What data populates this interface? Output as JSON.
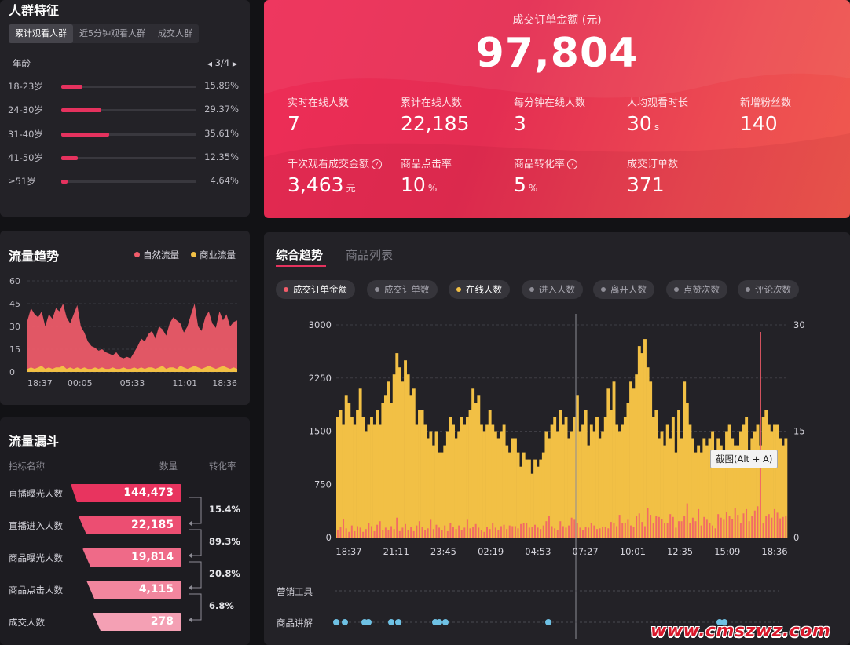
{
  "crowd": {
    "title": "人群特征",
    "tabs": [
      "累计观看人群",
      "近5分钟观看人群",
      "成交人群"
    ],
    "active_tab": 0,
    "section_label": "年龄",
    "pager": "3/4",
    "age_rows": [
      {
        "label": "18-23岁",
        "pct_text": "15.89%",
        "pct": 15.89
      },
      {
        "label": "24-30岁",
        "pct_text": "29.37%",
        "pct": 29.37
      },
      {
        "label": "31-40岁",
        "pct_text": "35.61%",
        "pct": 35.61
      },
      {
        "label": "41-50岁",
        "pct_text": "12.35%",
        "pct": 12.35
      },
      {
        "label": "≥51岁",
        "pct_text": "4.64%",
        "pct": 4.64
      }
    ]
  },
  "hero": {
    "title": "成交订单金额 (元)",
    "value": "97,804",
    "metrics": [
      {
        "label": "实时在线人数",
        "value": "7",
        "unit": "",
        "help": false
      },
      {
        "label": "累计在线人数",
        "value": "22,185",
        "unit": "",
        "help": false
      },
      {
        "label": "每分钟在线人数",
        "value": "3",
        "unit": "",
        "help": false
      },
      {
        "label": "人均观看时长",
        "value": "30",
        "unit": "s",
        "help": false
      },
      {
        "label": "新增粉丝数",
        "value": "140",
        "unit": "",
        "help": false
      },
      {
        "label": "千次观看成交金额",
        "value": "3,463",
        "unit": "元",
        "help": true
      },
      {
        "label": "商品点击率",
        "value": "10",
        "unit": "%",
        "help": false
      },
      {
        "label": "商品转化率",
        "value": "5",
        "unit": "%",
        "help": true
      },
      {
        "label": "成交订单数",
        "value": "371",
        "unit": "",
        "help": false
      }
    ]
  },
  "traffic": {
    "title": "流量趋势",
    "legend": [
      {
        "name": "自然流量",
        "color": "#f25c6a"
      },
      {
        "name": "商业流量",
        "color": "#f2c045"
      }
    ]
  },
  "funnel": {
    "title": "流量漏斗",
    "col_name": "指标名称",
    "col_count": "数量",
    "col_rate": "转化率",
    "rows": [
      {
        "label": "直播曝光人数",
        "value": "144,473",
        "color": "#e8345f"
      },
      {
        "label": "直播进入人数",
        "value": "22,185",
        "color": "#ec4e72"
      },
      {
        "label": "商品曝光人数",
        "value": "19,814",
        "color": "#ef6a88"
      },
      {
        "label": "商品点击人数",
        "value": "4,115",
        "color": "#f2869e"
      },
      {
        "label": "成交人数",
        "value": "278",
        "color": "#f4a0b4"
      }
    ],
    "rates": [
      "15.4%",
      "89.3%",
      "20.8%",
      "6.8%"
    ]
  },
  "trend": {
    "tabs": [
      "综合趋势",
      "商品列表"
    ],
    "active_tab": 0,
    "pills": [
      {
        "label": "成交订单金额",
        "color": "#f25c6a",
        "on": true
      },
      {
        "label": "成交订单数",
        "color": "#8e8d96",
        "on": false
      },
      {
        "label": "在线人数",
        "color": "#f2c045",
        "on": true
      },
      {
        "label": "进入人数",
        "color": "#8e8d96",
        "on": false
      },
      {
        "label": "离开人数",
        "color": "#8e8d96",
        "on": false
      },
      {
        "label": "点赞次数",
        "color": "#8e8d96",
        "on": false
      },
      {
        "label": "评论次数",
        "color": "#8e8d96",
        "on": false
      }
    ],
    "tooltip": "截图(Alt + A)",
    "lanes": [
      "营销工具",
      "商品讲解"
    ]
  },
  "watermark": "www.cmszwz.com",
  "chart_data": [
    {
      "type": "area",
      "x_tick_labels": [
        "18:37",
        "00:05",
        "05:33",
        "11:01",
        "18:36"
      ],
      "ylim": [
        0,
        60
      ],
      "y_ticks": [
        0,
        15,
        30,
        45,
        60
      ],
      "grid": true,
      "series": [
        {
          "name": "自然流量",
          "color": "#f25c6a",
          "values": [
            34,
            42,
            38,
            36,
            40,
            30,
            38,
            35,
            42,
            40,
            45,
            36,
            32,
            38,
            44,
            30,
            26,
            20,
            17,
            16,
            14,
            15,
            13,
            12,
            11,
            13,
            10,
            9,
            10,
            9,
            13,
            17,
            22,
            20,
            25,
            27,
            22,
            30,
            28,
            24,
            32,
            36,
            34,
            32,
            26,
            30,
            38,
            45,
            30,
            27,
            36,
            40,
            32,
            29,
            40,
            34,
            38,
            30,
            33,
            34
          ]
        },
        {
          "name": "商业流量",
          "color": "#f2c045",
          "values": [
            2,
            3,
            2,
            3,
            4,
            2,
            3,
            2,
            3,
            3,
            4,
            2,
            3,
            2,
            3,
            2,
            3,
            2,
            2,
            3,
            2,
            3,
            2,
            2,
            3,
            2,
            2,
            3,
            2,
            2,
            3,
            2,
            3,
            2,
            3,
            3,
            2,
            3,
            4,
            2,
            3,
            3,
            2,
            4,
            3,
            2,
            3,
            4,
            3,
            2,
            3,
            4,
            3,
            2,
            3,
            4,
            3,
            2,
            3,
            2
          ]
        }
      ]
    },
    {
      "type": "bar",
      "x_tick_labels": [
        "18:37",
        "21:11",
        "23:45",
        "02:19",
        "04:53",
        "07:27",
        "10:01",
        "12:35",
        "15:09",
        "18:36"
      ],
      "y_left_ticks": [
        0,
        750,
        1500,
        2250,
        3000
      ],
      "y_right_ticks": [
        0,
        15,
        30
      ],
      "ylim_left": [
        0,
        3000
      ],
      "ylim_right": [
        0,
        30
      ],
      "grid": true,
      "series": [
        {
          "name": "在线人数",
          "color": "#f2c045",
          "axis": "right",
          "values": [
            17,
            18,
            16,
            20,
            19,
            17,
            16,
            18,
            21,
            17,
            15,
            16,
            17,
            16,
            18,
            16,
            19,
            20,
            22,
            19,
            23,
            26,
            24,
            22,
            25,
            23,
            20,
            21,
            16,
            18,
            18,
            16,
            14,
            15,
            13,
            15,
            12,
            12,
            13,
            15,
            17,
            16,
            14,
            15,
            17,
            16,
            17,
            18,
            21,
            19,
            20,
            16,
            15,
            16,
            18,
            16,
            15,
            14,
            15,
            16,
            13,
            12,
            14,
            14,
            12,
            10,
            12,
            11,
            11,
            9,
            11,
            10,
            11,
            12,
            15,
            14,
            16,
            17,
            15,
            18,
            16,
            17,
            14,
            15,
            17,
            20,
            15,
            16,
            18,
            13,
            16,
            15,
            17,
            14,
            15,
            17,
            21,
            18,
            22,
            16,
            15,
            16,
            17,
            19,
            22,
            21,
            23,
            27,
            26,
            28,
            24,
            22,
            17,
            18,
            14,
            15,
            13,
            16,
            14,
            17,
            12,
            18,
            14,
            22,
            19,
            16,
            14,
            12,
            13,
            12,
            14,
            13,
            14,
            15,
            11,
            14,
            13,
            12,
            15,
            16,
            14,
            13,
            13,
            15,
            16,
            17,
            12,
            14,
            15,
            16,
            13,
            17,
            18,
            16,
            15,
            16,
            16,
            14,
            13,
            14
          ]
        },
        {
          "name": "成交订单金额",
          "color": "#f25c6a",
          "axis": "left",
          "values": [
            110,
            150,
            260,
            130,
            80,
            170,
            90,
            160,
            140,
            80,
            120,
            200,
            160,
            90,
            180,
            230,
            100,
            140,
            100,
            160,
            120,
            280,
            90,
            140,
            190,
            110,
            150,
            90,
            170,
            230,
            150,
            100,
            130,
            250,
            120,
            180,
            140,
            110,
            170,
            90,
            200,
            150,
            120,
            170,
            100,
            140,
            250,
            130,
            150,
            190,
            140,
            100,
            80,
            150,
            120,
            200,
            140,
            100,
            160,
            180,
            120,
            170,
            160,
            160,
            130,
            190,
            210,
            200,
            140,
            150,
            180,
            140,
            120,
            170,
            230,
            300,
            160,
            130,
            110,
            230,
            160,
            140,
            170,
            280,
            250,
            200,
            140,
            100,
            150,
            140,
            200,
            170,
            120,
            130,
            150,
            150,
            130,
            220,
            200,
            160,
            320,
            200,
            210,
            250,
            170,
            150,
            300,
            340,
            220,
            160,
            420,
            320,
            200,
            310,
            290,
            260,
            210,
            200,
            330,
            290,
            140,
            230,
            230,
            300,
            480,
            200,
            280,
            230,
            400,
            170,
            290,
            250,
            200,
            170,
            130,
            330,
            280,
            250,
            360,
            300,
            260,
            410,
            320,
            200,
            340,
            400,
            230,
            300,
            380,
            440,
            2900,
            210,
            310,
            330,
            280,
            400,
            350,
            270,
            290,
            300
          ]
        }
      ]
    }
  ]
}
